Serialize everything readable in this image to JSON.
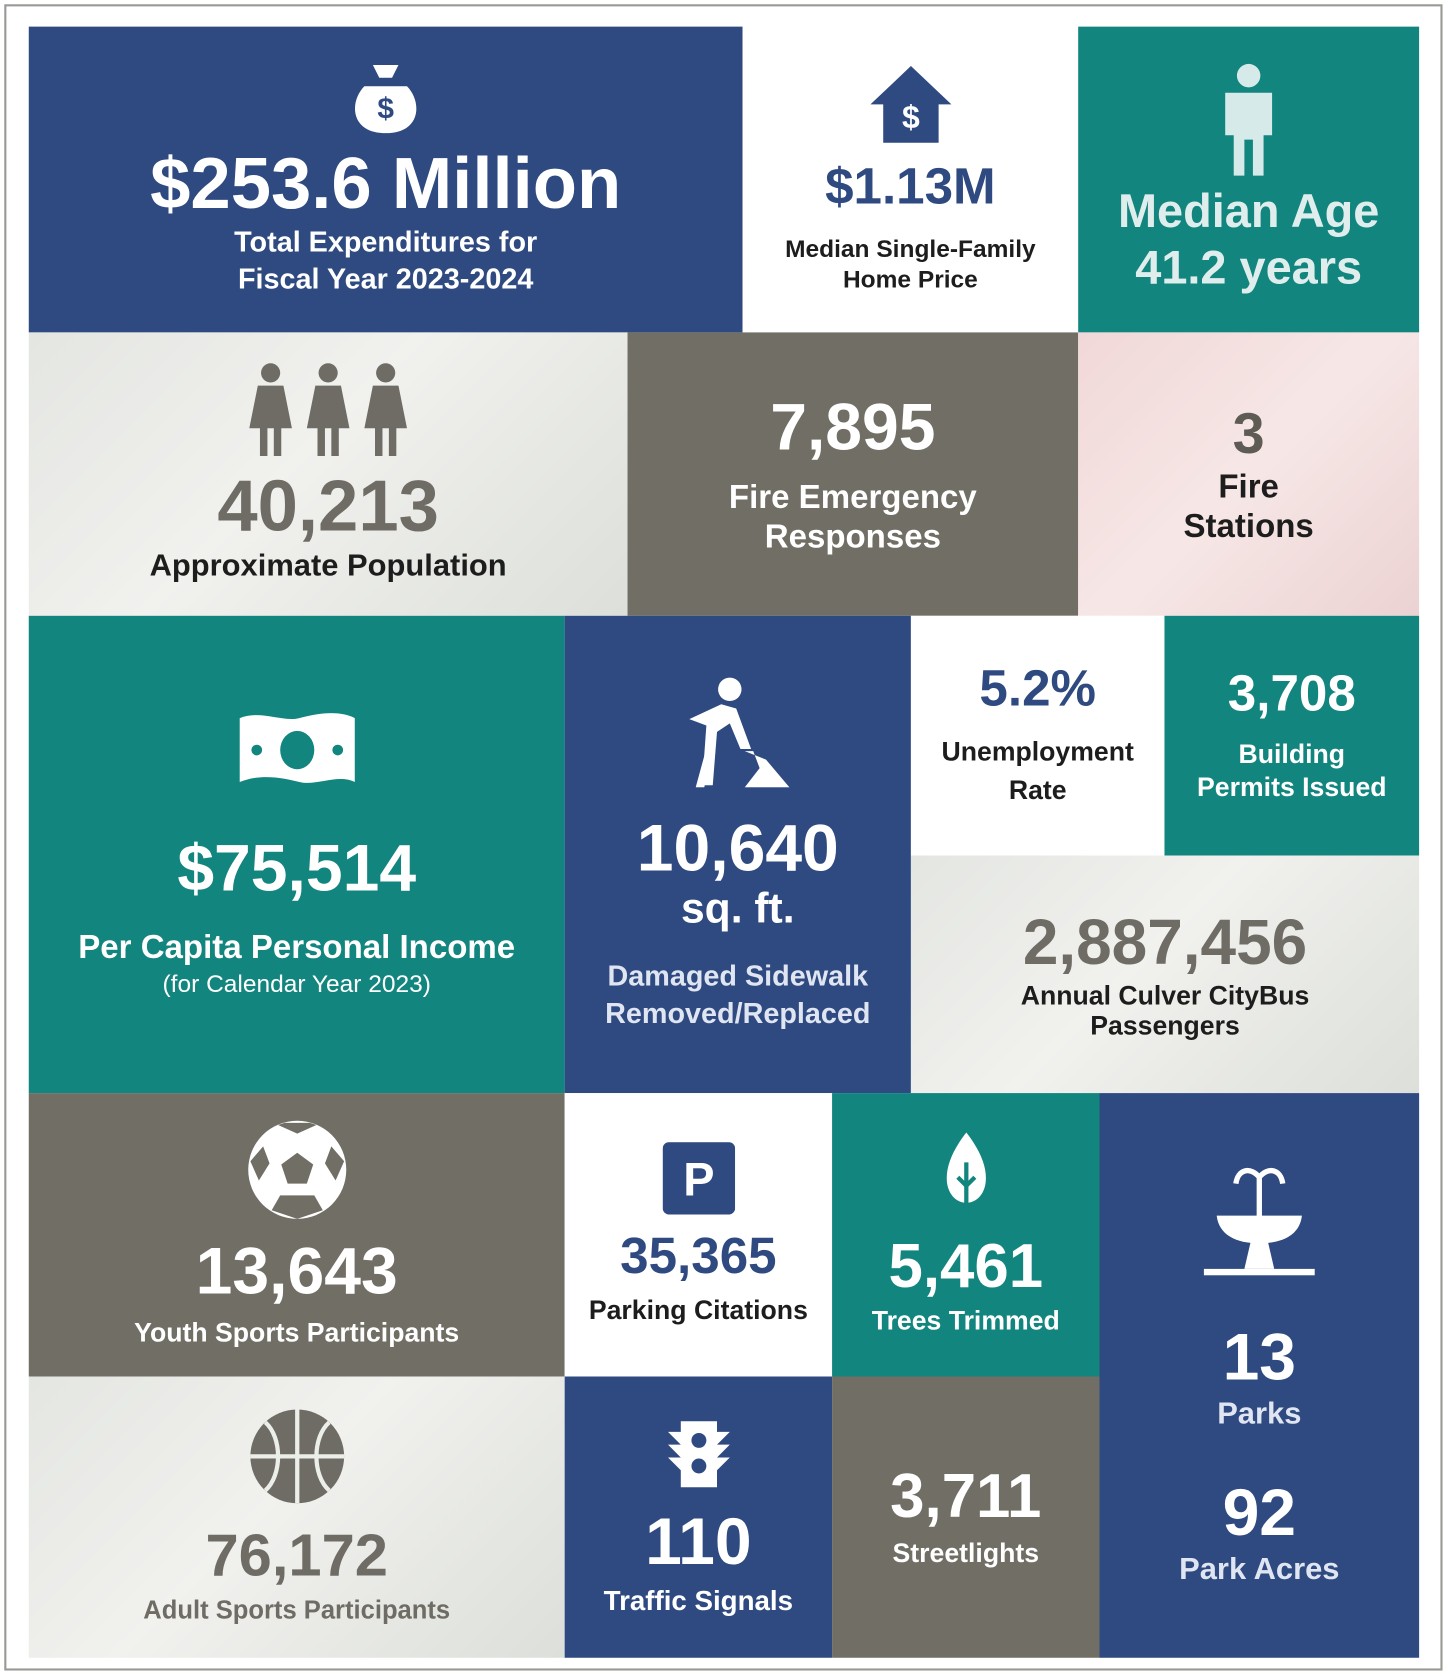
{
  "tiles": [
    {
      "value": "$253.6 Million",
      "label": [
        "Total Expenditures for",
        "Fiscal Year 2023-2024"
      ]
    },
    {
      "value": "$1.13M",
      "label": [
        "Median Single-Family",
        "Home Price"
      ]
    },
    {
      "value": "Median Age",
      "label": [
        "41.2 years"
      ]
    },
    {
      "value": "40,213",
      "label": [
        "Approximate Population"
      ]
    },
    {
      "value": "7,895",
      "label": [
        "Fire Emergency",
        "Responses"
      ]
    },
    {
      "value": "3",
      "label": [
        "Fire",
        "Stations"
      ]
    },
    {
      "value": "$75,514",
      "label": [
        "Per Capita Personal Income",
        "(for Calendar Year 2023)"
      ]
    },
    {
      "value": "10,640",
      "label": [
        "sq. ft.",
        "Damaged Sidewalk",
        "Removed/Replaced"
      ]
    },
    {
      "value": "5.2%",
      "label": [
        "Unemployment",
        "Rate"
      ]
    },
    {
      "value": "3,708",
      "label": [
        "Building",
        "Permits Issued"
      ]
    },
    {
      "value": "2,887,456",
      "label": [
        "Annual Culver CityBus",
        "Passengers"
      ]
    },
    {
      "value": "13,643",
      "label": [
        "Youth Sports Participants"
      ]
    },
    {
      "value": "35,365",
      "label": [
        "Parking Citations"
      ]
    },
    {
      "value": "5,461",
      "label": [
        "Trees Trimmed"
      ]
    },
    {
      "value": "13",
      "label": [
        "Parks"
      ]
    },
    {
      "value": "92",
      "label": [
        "Park Acres"
      ]
    },
    {
      "value": "76,172",
      "label": [
        "Adult Sports Participants"
      ]
    },
    {
      "value": "110",
      "label": [
        "Traffic Signals"
      ]
    },
    {
      "value": "3,711",
      "label": [
        "Streetlights"
      ]
    }
  ]
}
